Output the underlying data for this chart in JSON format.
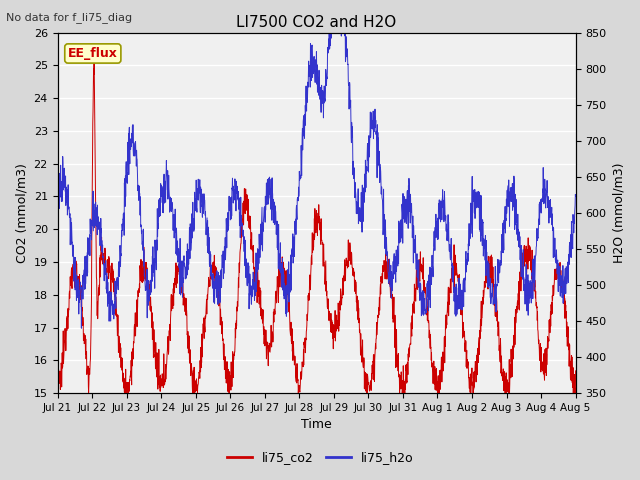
{
  "title": "LI7500 CO2 and H2O",
  "subtitle": "No data for f_li75_diag",
  "xlabel": "Time",
  "ylabel_left": "CO2 (mmol/m3)",
  "ylabel_right": "H2O (mmol/m3)",
  "ylim_left": [
    15.0,
    26.0
  ],
  "ylim_right": [
    350,
    850
  ],
  "yticks_left": [
    15.0,
    16.0,
    17.0,
    18.0,
    19.0,
    20.0,
    21.0,
    22.0,
    23.0,
    24.0,
    25.0,
    26.0
  ],
  "yticks_right": [
    350,
    400,
    450,
    500,
    550,
    600,
    650,
    700,
    750,
    800,
    850
  ],
  "xtick_labels": [
    "Jul 21",
    "Jul 22",
    "Jul 23",
    "Jul 24",
    "Jul 25",
    "Jul 26",
    "Jul 27",
    "Jul 28",
    "Jul 29",
    "Jul 30",
    "Jul 31",
    "Aug 1",
    "Aug 2",
    "Aug 3",
    "Aug 4",
    "Aug 5"
  ],
  "color_co2": "#cc0000",
  "color_h2o": "#3333cc",
  "legend_label_co2": "li75_co2",
  "legend_label_h2o": "li75_h2o",
  "annotation_text": "EE_flux",
  "annotation_box_color": "#ffffcc",
  "annotation_border_color": "#999900",
  "background_color": "#d8d8d8",
  "plot_bg_color": "#f0f0f0",
  "grid_color": "#ffffff",
  "n_points": 2000
}
